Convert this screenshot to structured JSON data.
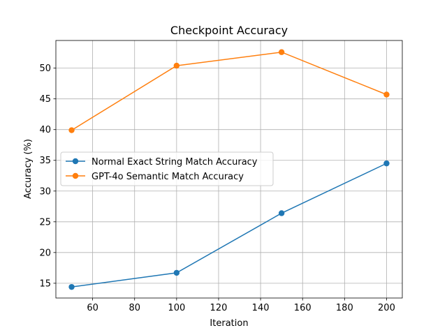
{
  "chart_data": {
    "type": "line",
    "title": "Checkpoint Accuracy",
    "xlabel": "Iteration",
    "ylabel": "Accuracy (%)",
    "x": [
      50,
      100,
      150,
      200
    ],
    "xlim": [
      42.5,
      207.5
    ],
    "ylim": [
      12.6,
      54.5
    ],
    "xticks": [
      60,
      80,
      100,
      120,
      140,
      160,
      180,
      200
    ],
    "yticks": [
      15,
      20,
      25,
      30,
      35,
      40,
      45,
      50
    ],
    "grid": true,
    "legend_position": "center-left",
    "series": [
      {
        "name": "Normal Exact String Match Accuracy",
        "color": "#1f77b4",
        "values": [
          14.4,
          16.7,
          26.4,
          34.5
        ]
      },
      {
        "name": "GPT-4o Semantic Match Accuracy",
        "color": "#ff7f0e",
        "values": [
          39.9,
          50.4,
          52.6,
          45.7
        ]
      }
    ]
  }
}
